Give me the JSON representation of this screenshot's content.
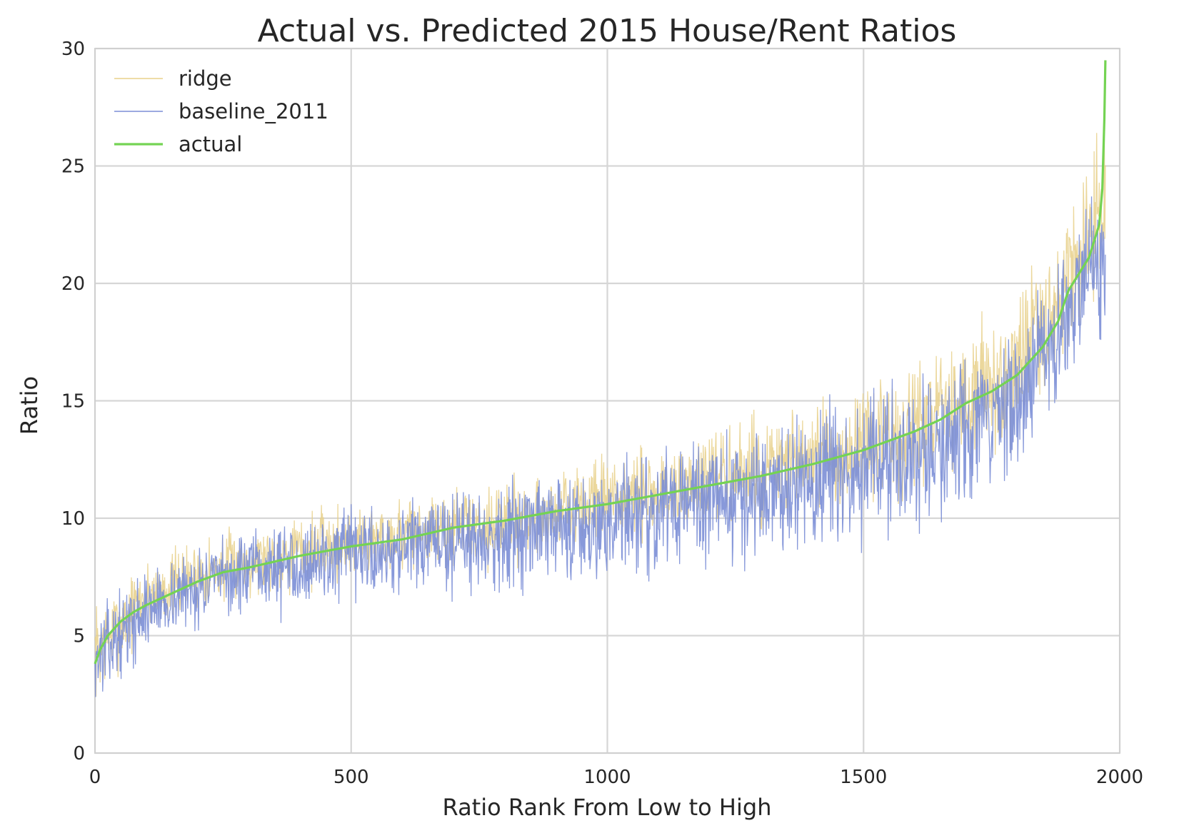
{
  "chart_data": {
    "type": "line",
    "title": "Actual vs. Predicted 2015 House/Rent Ratios",
    "xlabel": "Ratio Rank From Low to High",
    "ylabel": "Ratio",
    "xlim": [
      0,
      2000
    ],
    "ylim": [
      0,
      30
    ],
    "xticks": [
      "0",
      "500",
      "1000",
      "1500",
      "2000"
    ],
    "yticks": [
      "0",
      "5",
      "10",
      "15",
      "20",
      "25",
      "30"
    ],
    "grid": true,
    "legend_position": "top-left",
    "n_points": 1973,
    "series": [
      {
        "name": "ridge",
        "color": "#e8d08a",
        "description_of_values": "noisy around actual, spread ~±1.5 rising to ~±3 at high ranks",
        "x": [
          0,
          100,
          200,
          300,
          400,
          500,
          600,
          700,
          800,
          900,
          1000,
          1100,
          1200,
          1300,
          1400,
          1500,
          1600,
          1700,
          1800,
          1900,
          1973
        ],
        "values": [
          4.3,
          6.7,
          7.6,
          8.2,
          8.6,
          9.0,
          9.3,
          9.6,
          9.9,
          10.3,
          10.7,
          11.1,
          11.6,
          12.0,
          12.4,
          13.0,
          13.8,
          15.0,
          16.5,
          20.0,
          23.5
        ],
        "spread": [
          1.8,
          1.3,
          1.3,
          1.3,
          1.4,
          1.4,
          1.4,
          1.4,
          1.5,
          1.5,
          1.6,
          1.8,
          1.9,
          2.0,
          2.0,
          2.2,
          2.3,
          2.4,
          2.6,
          2.6,
          2.8
        ]
      },
      {
        "name": "baseline_2011",
        "color": "#7b8ed6",
        "x": [
          0,
          100,
          200,
          300,
          400,
          500,
          600,
          700,
          800,
          900,
          1000,
          1100,
          1200,
          1300,
          1400,
          1500,
          1600,
          1700,
          1800,
          1900,
          1973
        ],
        "values": [
          4.0,
          6.1,
          7.1,
          7.7,
          8.1,
          8.4,
          8.7,
          9.0,
          9.3,
          9.6,
          9.9,
          10.4,
          10.8,
          11.1,
          11.5,
          12.0,
          12.6,
          13.7,
          15.3,
          18.5,
          21.5
        ],
        "spread": [
          1.6,
          1.4,
          1.4,
          1.5,
          1.6,
          1.7,
          1.8,
          1.9,
          2.0,
          2.1,
          2.2,
          2.4,
          2.5,
          2.6,
          2.6,
          2.7,
          2.8,
          2.8,
          2.8,
          2.8,
          3.0
        ]
      },
      {
        "name": "actual",
        "color": "#74d353",
        "x": [
          0,
          10,
          25,
          50,
          75,
          100,
          150,
          200,
          250,
          300,
          400,
          500,
          600,
          700,
          800,
          900,
          1000,
          1100,
          1200,
          1300,
          1400,
          1500,
          1550,
          1600,
          1650,
          1700,
          1750,
          1800,
          1850,
          1880,
          1900,
          1920,
          1940,
          1950,
          1960,
          1966,
          1970,
          1972
        ],
        "values": [
          3.8,
          4.4,
          5.0,
          5.6,
          6.0,
          6.3,
          6.8,
          7.3,
          7.7,
          7.9,
          8.4,
          8.8,
          9.1,
          9.6,
          9.9,
          10.3,
          10.6,
          11.0,
          11.4,
          11.8,
          12.3,
          12.9,
          13.3,
          13.7,
          14.2,
          14.9,
          15.4,
          16.1,
          17.3,
          18.4,
          19.7,
          20.4,
          21.1,
          21.8,
          22.5,
          24.0,
          27.0,
          29.5
        ]
      }
    ]
  }
}
